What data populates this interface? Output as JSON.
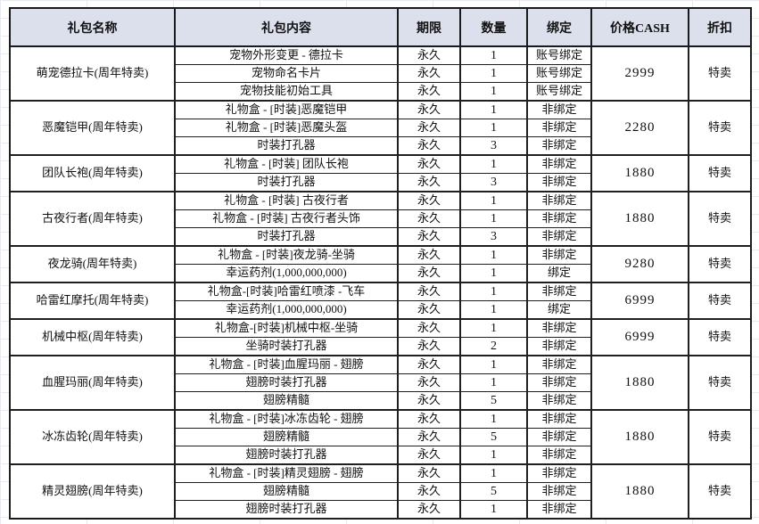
{
  "colors": {
    "header_bg": "#dbe0ec",
    "border": "#1a1a1a",
    "grid_faint": "#e7eaee"
  },
  "table": {
    "headers": [
      "礼包名称",
      "礼包内容",
      "期限",
      "数量",
      "绑定",
      "价格CASH",
      "折扣"
    ],
    "groups": [
      {
        "name": "萌宠德拉卡(周年特卖)",
        "price": "2999",
        "discount": "特卖",
        "items": [
          {
            "content": "宠物外形变更 - 德拉卡",
            "duration": "永久",
            "qty": "1",
            "bind": "账号绑定"
          },
          {
            "content": "宠物命名卡片",
            "duration": "永久",
            "qty": "1",
            "bind": "账号绑定"
          },
          {
            "content": "宠物技能初始工具",
            "duration": "永久",
            "qty": "1",
            "bind": "账号绑定"
          }
        ]
      },
      {
        "name": "恶魔铠甲(周年特卖)",
        "price": "2280",
        "discount": "特卖",
        "items": [
          {
            "content": "礼物盒 - [时装]恶魔铠甲",
            "duration": "永久",
            "qty": "1",
            "bind": "非绑定"
          },
          {
            "content": "礼物盒 - [时装]恶魔头盔",
            "duration": "永久",
            "qty": "1",
            "bind": "非绑定"
          },
          {
            "content": "时装打孔器",
            "duration": "永久",
            "qty": "3",
            "bind": "非绑定"
          }
        ]
      },
      {
        "name": "团队长袍(周年特卖)",
        "price": "1880",
        "discount": "特卖",
        "items": [
          {
            "content": "礼物盒 - [时装] 团队长袍",
            "duration": "永久",
            "qty": "1",
            "bind": "非绑定"
          },
          {
            "content": "时装打孔器",
            "duration": "永久",
            "qty": "3",
            "bind": "非绑定"
          }
        ]
      },
      {
        "name": "古夜行者(周年特卖)",
        "price": "1880",
        "discount": "特卖",
        "items": [
          {
            "content": "礼物盒 - [时装] 古夜行者",
            "duration": "永久",
            "qty": "1",
            "bind": "非绑定"
          },
          {
            "content": "礼物盒 - [时装] 古夜行者头饰",
            "duration": "永久",
            "qty": "1",
            "bind": "非绑定"
          },
          {
            "content": "时装打孔器",
            "duration": "永久",
            "qty": "3",
            "bind": "非绑定"
          }
        ]
      },
      {
        "name": "夜龙骑(周年特卖)",
        "price": "9280",
        "discount": "特卖",
        "items": [
          {
            "content": "礼物盒 - [时装]夜龙骑-坐骑",
            "duration": "永久",
            "qty": "1",
            "bind": "非绑定"
          },
          {
            "content": "幸运药剂(1,000,000,000)",
            "duration": "永久",
            "qty": "1",
            "bind": "绑定"
          }
        ]
      },
      {
        "name": "哈雷红摩托(周年特卖)",
        "price": "6999",
        "discount": "特卖",
        "items": [
          {
            "content": "礼物盒-[时装]哈雷红喷漆 -飞车",
            "duration": "永久",
            "qty": "1",
            "bind": "非绑定"
          },
          {
            "content": "幸运药剂(1,000,000,000)",
            "duration": "永久",
            "qty": "1",
            "bind": "绑定"
          }
        ]
      },
      {
        "name": "机械中枢(周年特卖)",
        "price": "6999",
        "discount": "特卖",
        "items": [
          {
            "content": "礼物盒-[时装]机械中枢-坐骑",
            "duration": "永久",
            "qty": "1",
            "bind": "非绑定"
          },
          {
            "content": "坐骑时装打孔器",
            "duration": "永久",
            "qty": "2",
            "bind": "非绑定"
          }
        ]
      },
      {
        "name": "血腥玛丽(周年特卖)",
        "price": "1880",
        "discount": "特卖",
        "items": [
          {
            "content": "礼物盒 - [时装]血腥玛丽 - 翅膀",
            "duration": "永久",
            "qty": "1",
            "bind": "非绑定"
          },
          {
            "content": "翅膀时装打孔器",
            "duration": "永久",
            "qty": "1",
            "bind": "非绑定"
          },
          {
            "content": "翅膀精髓",
            "duration": "永久",
            "qty": "5",
            "bind": "非绑定"
          }
        ]
      },
      {
        "name": "冰冻齿轮(周年特卖)",
        "price": "1880",
        "discount": "特卖",
        "items": [
          {
            "content": "礼物盒 - [时装]冰冻齿轮 - 翅膀",
            "duration": "永久",
            "qty": "1",
            "bind": "非绑定"
          },
          {
            "content": "翅膀精髓",
            "duration": "永久",
            "qty": "5",
            "bind": "非绑定"
          },
          {
            "content": "翅膀时装打孔器",
            "duration": "永久",
            "qty": "1",
            "bind": "非绑定"
          }
        ]
      },
      {
        "name": "精灵翅膀(周年特卖)",
        "price": "1880",
        "discount": "特卖",
        "items": [
          {
            "content": "礼物盒 - [时装]精灵翅膀 - 翅膀",
            "duration": "永久",
            "qty": "1",
            "bind": "非绑定"
          },
          {
            "content": "翅膀精髓",
            "duration": "永久",
            "qty": "5",
            "bind": "非绑定"
          },
          {
            "content": "翅膀时装打孔器",
            "duration": "永久",
            "qty": "1",
            "bind": "非绑定"
          }
        ]
      }
    ]
  }
}
